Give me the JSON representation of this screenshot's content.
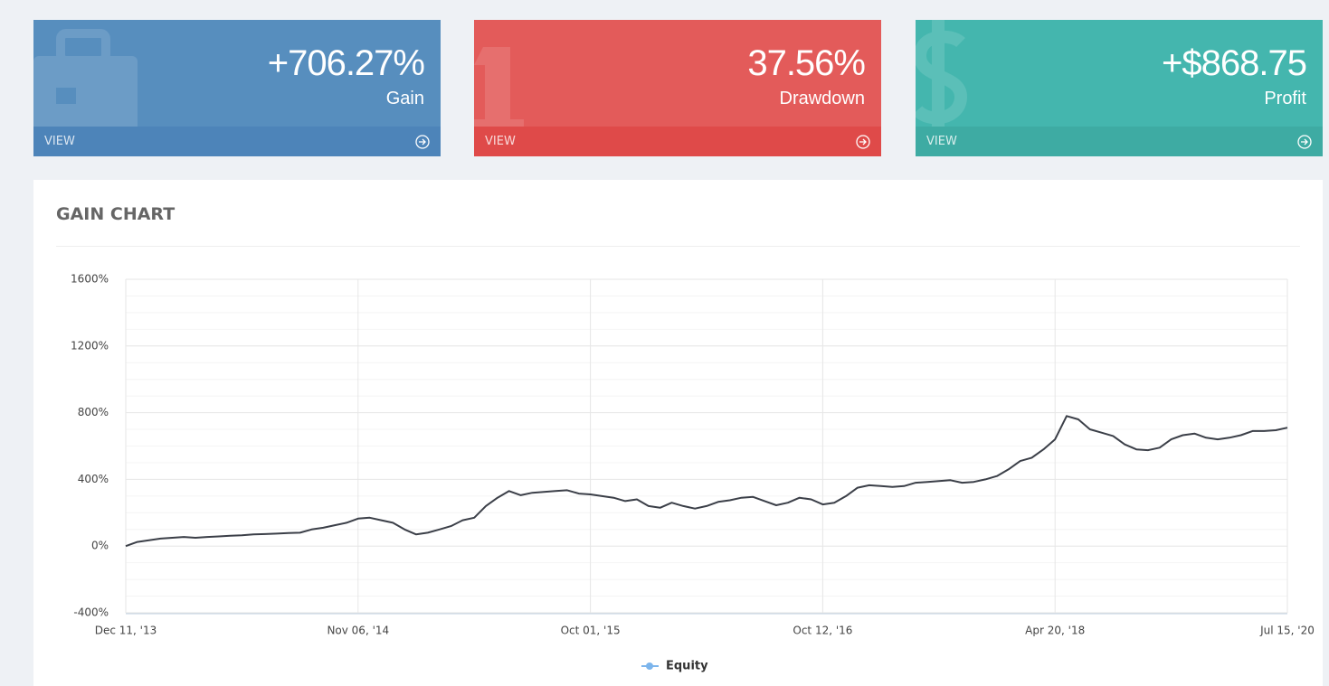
{
  "cards": [
    {
      "value": "+706.27%",
      "label": "Gain",
      "link": "VIEW"
    },
    {
      "value": "37.56%",
      "label": "Drawdown",
      "link": "VIEW"
    },
    {
      "value": "+$868.75",
      "label": "Profit",
      "link": "VIEW"
    }
  ],
  "chart_data": {
    "type": "line",
    "title": "GAIN CHART",
    "categories": [
      "Dec 11, '13",
      null,
      null,
      null,
      null,
      null,
      null,
      null,
      null,
      null,
      null,
      null,
      null,
      null,
      null,
      null,
      null,
      null,
      null,
      null,
      "Nov 06, '14",
      null,
      null,
      null,
      null,
      null,
      null,
      null,
      null,
      null,
      null,
      null,
      null,
      null,
      null,
      null,
      null,
      null,
      null,
      null,
      "Oct 01, '15",
      null,
      null,
      null,
      null,
      null,
      null,
      null,
      null,
      null,
      null,
      null,
      null,
      null,
      null,
      null,
      null,
      null,
      null,
      null,
      "Oct 12, '16",
      null,
      null,
      null,
      null,
      null,
      null,
      null,
      null,
      null,
      null,
      null,
      null,
      null,
      null,
      null,
      null,
      null,
      null,
      null,
      "Apr 20, '18",
      null,
      null,
      null,
      null,
      null,
      null,
      null,
      null,
      null,
      null,
      null,
      null,
      null,
      null,
      null,
      null,
      null,
      null,
      null,
      "Jul 15, '20"
    ],
    "series": [
      {
        "name": "Equity",
        "color": "#3b3f48",
        "values": [
          0,
          25,
          35,
          45,
          50,
          55,
          50,
          55,
          58,
          62,
          65,
          70,
          72,
          75,
          78,
          80,
          100,
          110,
          125,
          140,
          165,
          170,
          155,
          140,
          100,
          70,
          80,
          100,
          120,
          155,
          170,
          240,
          290,
          330,
          305,
          320,
          325,
          330,
          335,
          315,
          310,
          300,
          290,
          270,
          280,
          240,
          230,
          260,
          240,
          225,
          240,
          265,
          275,
          290,
          295,
          270,
          245,
          260,
          290,
          280,
          250,
          260,
          300,
          350,
          365,
          360,
          355,
          360,
          380,
          385,
          390,
          395,
          380,
          385,
          400,
          420,
          460,
          510,
          530,
          580,
          640,
          780,
          760,
          700,
          680,
          660,
          610,
          580,
          575,
          590,
          640,
          665,
          675,
          650,
          640,
          650,
          665,
          690,
          690,
          695,
          710
        ]
      }
    ],
    "ylim": [
      -400,
      1600
    ],
    "yticks": [
      {
        "value": -400,
        "label": "-400%"
      },
      {
        "value": 0,
        "label": "0%"
      },
      {
        "value": 400,
        "label": "400%"
      },
      {
        "value": 800,
        "label": "800%"
      },
      {
        "value": 1200,
        "label": "1200%"
      },
      {
        "value": 1600,
        "label": "1600%"
      }
    ],
    "grid": true
  }
}
